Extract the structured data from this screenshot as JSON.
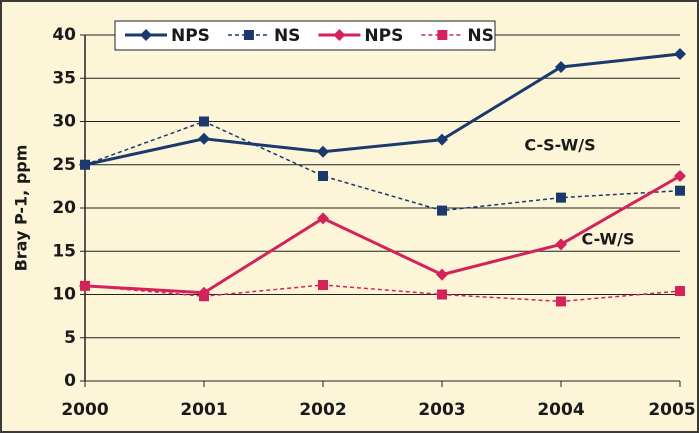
{
  "chart_data": {
    "type": "line",
    "y_label": "Bray P-1, ppm",
    "x": [
      2000,
      2001,
      2002,
      2003,
      2004,
      2005
    ],
    "xlim": [
      2000,
      2005
    ],
    "xticks": [
      2000,
      2001,
      2002,
      2003,
      2004,
      2005
    ],
    "ylim": [
      0,
      40
    ],
    "yticks": [
      0,
      5,
      10,
      15,
      20,
      25,
      30,
      35,
      40
    ],
    "grid": true,
    "annotations": [
      "C-S-W/S",
      "C-W/S"
    ],
    "series": [
      {
        "name": "NPS",
        "color": "#1a3a6e",
        "marker": "diamond",
        "dash": false,
        "values": [
          25,
          28,
          26.5,
          27.9,
          36.3,
          37.8
        ]
      },
      {
        "name": "NS",
        "color": "#1a3a6e",
        "marker": "square",
        "dash": true,
        "values": [
          25,
          30,
          23.7,
          19.7,
          21.2,
          22
        ]
      },
      {
        "name": "NPS",
        "color": "#d4235a",
        "marker": "diamond",
        "dash": false,
        "values": [
          11,
          10.2,
          18.8,
          12.3,
          15.8,
          23.7
        ]
      },
      {
        "name": "NS",
        "color": "#d4235a",
        "marker": "square",
        "dash": true,
        "values": [
          11,
          9.8,
          11.1,
          10,
          9.2,
          10.4
        ]
      }
    ]
  }
}
